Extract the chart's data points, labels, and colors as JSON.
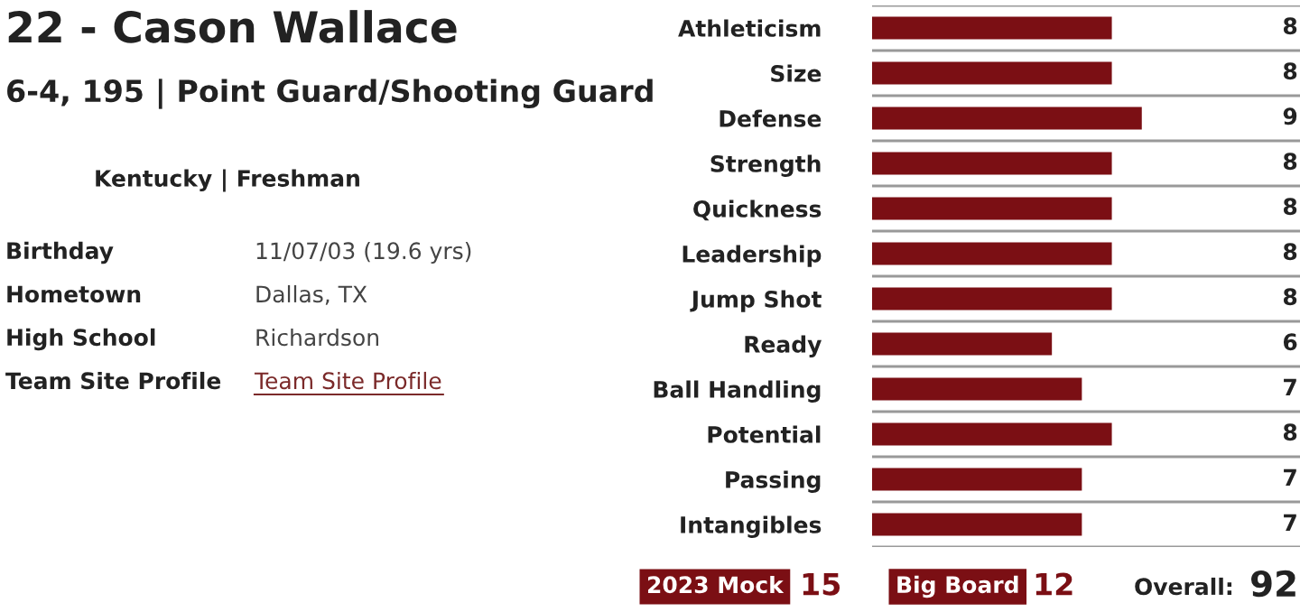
{
  "chart_data": {
    "type": "bar",
    "orientation": "horizontal",
    "title": "22 - Cason Wallace",
    "subtitle": "6-4, 195 | Point Guard/Shooting Guard",
    "categories": [
      "Athleticism",
      "Size",
      "Defense",
      "Strength",
      "Quickness",
      "Leadership",
      "Jump Shot",
      "Ready",
      "Ball Handling",
      "Potential",
      "Passing",
      "Intangibles"
    ],
    "values": [
      8,
      8,
      9,
      8,
      8,
      8,
      8,
      6,
      7,
      8,
      7,
      7
    ],
    "color": "#7b0f14",
    "data_labels": true,
    "grid": "y",
    "annotations": [
      "Kentucky | Freshman",
      "Birthday",
      "11/07/03 (19.6 yrs)",
      "Hometown",
      "Dallas, TX",
      "High School",
      "Richardson",
      "Team Site Profile",
      "Team Site Profile",
      "2023 Mock",
      "15",
      "Big Board",
      "12",
      "Overall:",
      "92"
    ]
  }
}
